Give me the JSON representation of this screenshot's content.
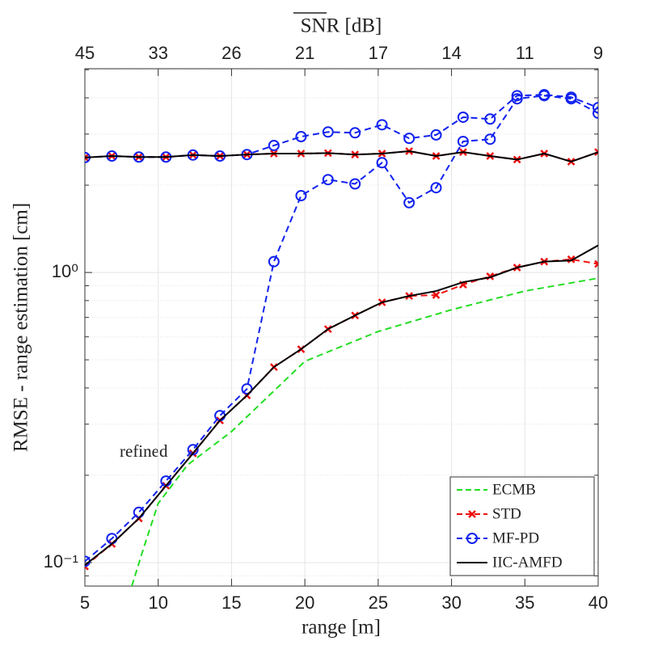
{
  "chart_data": {
    "type": "line",
    "xlabel": "range [m]",
    "ylabel": "RMSE - range estimation [cm]",
    "x2label": "SNR [dB]",
    "annotation": "refined",
    "xlim": [
      5,
      40
    ],
    "xticks": [
      5,
      10,
      15,
      20,
      25,
      30,
      35,
      40
    ],
    "x2ticks": [
      {
        "value": 5,
        "label": "45"
      },
      {
        "value": 10,
        "label": "33"
      },
      {
        "value": 15,
        "label": "26"
      },
      {
        "value": 20,
        "label": "21"
      },
      {
        "value": 25,
        "label": "17"
      },
      {
        "value": 30,
        "label": "14"
      },
      {
        "value": 35,
        "label": "11"
      },
      {
        "value": 40,
        "label": "9"
      }
    ],
    "ylim": [
      0.083,
      5.04
    ],
    "ylog": true,
    "yticks": [
      {
        "value": 0.1,
        "label": "10⁻¹"
      },
      {
        "value": 1,
        "label": "10⁰"
      }
    ],
    "yminorticks": [
      0.09,
      0.2,
      0.3,
      0.4,
      0.5,
      0.6,
      0.7,
      0.8,
      0.9,
      2,
      3,
      4,
      5
    ],
    "grid": true,
    "legend": "lower right",
    "x": [
      5,
      6.84,
      8.68,
      10.53,
      12.37,
      14.21,
      16.05,
      17.89,
      19.74,
      21.58,
      23.42,
      25.26,
      27.11,
      28.95,
      30.79,
      32.63,
      34.47,
      36.32,
      38.16,
      40
    ],
    "series": [
      {
        "name": "ECMB",
        "color": "#22dd22",
        "dash": true,
        "marker": "none",
        "x": [
          8.2,
          9,
          10,
          12,
          15,
          20,
          25,
          30,
          35,
          40
        ],
        "values": [
          0.083,
          0.112,
          0.16,
          0.217,
          0.283,
          0.494,
          0.626,
          0.744,
          0.863,
          0.956
        ]
      },
      {
        "name": "STD",
        "color": "#ee1111",
        "dash": true,
        "marker": "x",
        "values": [
          0.097,
          0.116,
          0.142,
          0.184,
          0.238,
          0.309,
          0.377,
          0.472,
          0.544,
          0.638,
          0.711,
          0.789,
          0.83,
          0.836,
          0.908,
          0.97,
          1.04,
          1.09,
          1.11,
          1.07
        ],
        "values_unrefined": [
          2.49,
          2.52,
          2.5,
          2.5,
          2.54,
          2.52,
          2.55,
          2.57,
          2.57,
          2.58,
          2.55,
          2.57,
          2.62,
          2.52,
          2.6,
          2.52,
          2.45,
          2.57,
          2.41,
          2.6
        ]
      },
      {
        "name": "MF-PD",
        "color": "#1122ee",
        "dash": true,
        "marker": "o",
        "values": [
          0.101,
          0.121,
          0.149,
          0.191,
          0.245,
          0.321,
          0.397,
          1.09,
          1.84,
          2.09,
          2.02,
          2.39,
          1.74,
          1.96,
          2.83,
          2.88,
          3.97,
          4.07,
          3.97,
          3.54
        ],
        "values_unrefined": [
          2.49,
          2.52,
          2.5,
          2.5,
          2.54,
          2.52,
          2.55,
          2.74,
          2.94,
          3.05,
          3.03,
          3.23,
          2.9,
          2.98,
          3.43,
          3.38,
          4.07,
          4.1,
          4.02,
          3.7
        ]
      },
      {
        "name": "IIC-AMFD",
        "color": "#000000",
        "dash": false,
        "marker": "none",
        "values": [
          0.098,
          0.116,
          0.142,
          0.184,
          0.238,
          0.309,
          0.377,
          0.472,
          0.544,
          0.638,
          0.711,
          0.789,
          0.83,
          0.863,
          0.926,
          0.962,
          1.04,
          1.09,
          1.1,
          1.24
        ],
        "values_unrefined": [
          2.49,
          2.52,
          2.5,
          2.5,
          2.54,
          2.52,
          2.55,
          2.57,
          2.57,
          2.58,
          2.55,
          2.57,
          2.62,
          2.52,
          2.6,
          2.52,
          2.45,
          2.57,
          2.41,
          2.6
        ]
      }
    ]
  }
}
